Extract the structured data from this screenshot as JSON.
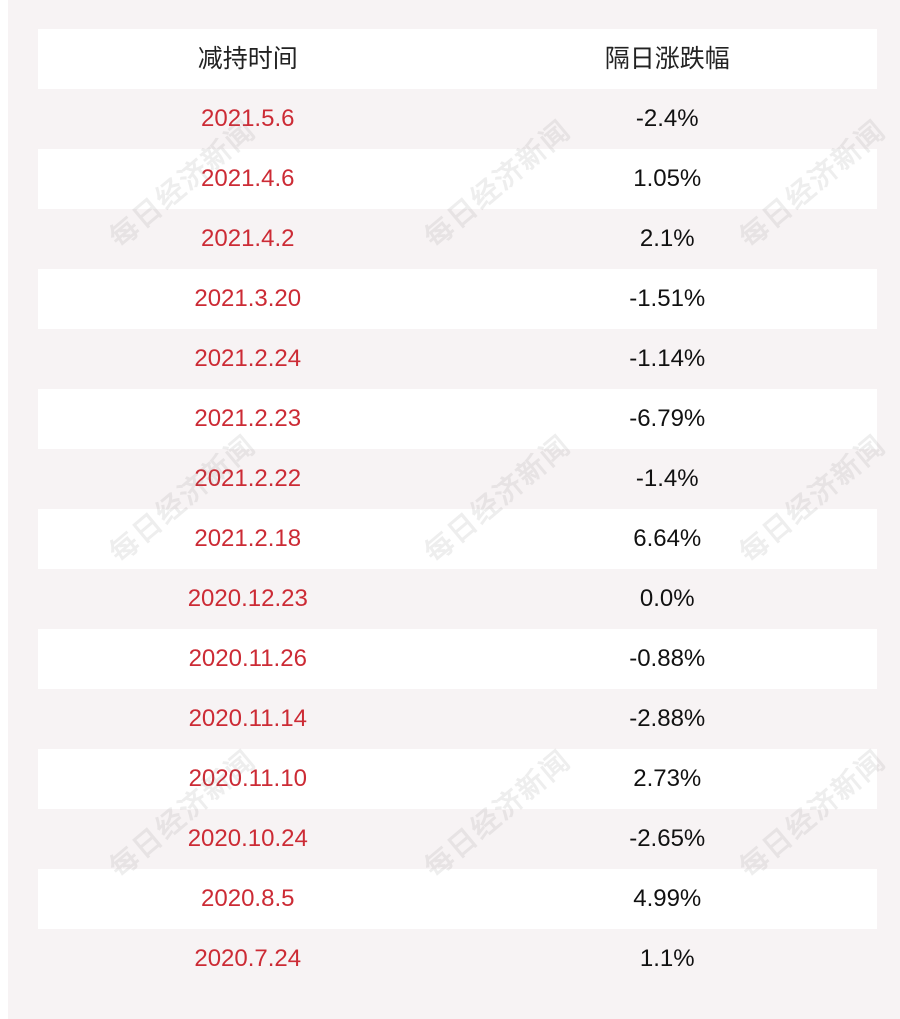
{
  "header": {
    "date_col": "减持时间",
    "change_col": "隔日涨跌幅"
  },
  "rows": [
    {
      "date": "2021.5.6",
      "change": "-2.4%"
    },
    {
      "date": "2021.4.6",
      "change": "1.05%"
    },
    {
      "date": "2021.4.2",
      "change": "2.1%"
    },
    {
      "date": "2021.3.20",
      "change": "-1.51%"
    },
    {
      "date": "2021.2.24",
      "change": "-1.14%"
    },
    {
      "date": "2021.2.23",
      "change": "-6.79%"
    },
    {
      "date": "2021.2.22",
      "change": "-1.4%"
    },
    {
      "date": "2021.2.18",
      "change": "6.64%"
    },
    {
      "date": "2020.12.23",
      "change": "0.0%"
    },
    {
      "date": "2020.11.26",
      "change": "-0.88%"
    },
    {
      "date": "2020.11.14",
      "change": "-2.88%"
    },
    {
      "date": "2020.11.10",
      "change": "2.73%"
    },
    {
      "date": "2020.10.24",
      "change": "-2.65%"
    },
    {
      "date": "2020.8.5",
      "change": "4.99%"
    },
    {
      "date": "2020.7.24",
      "change": "1.1%"
    }
  ],
  "watermark": "每日经济新闻",
  "colors": {
    "date_text": "#cc2b35",
    "background": "#f7f3f4"
  }
}
